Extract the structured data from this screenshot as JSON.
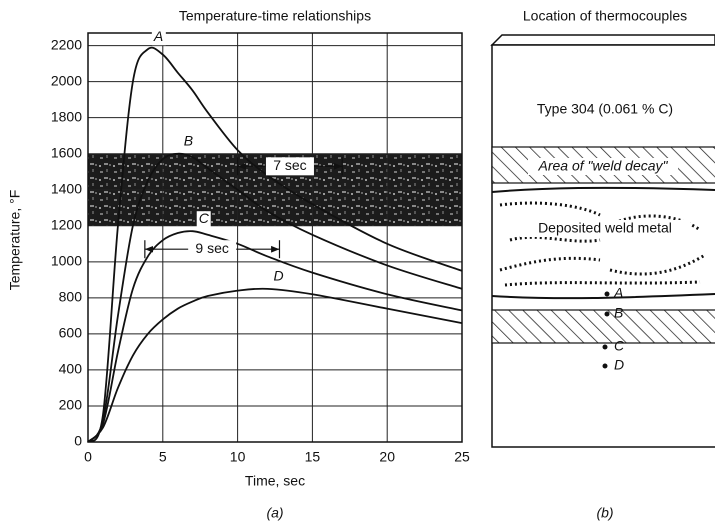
{
  "chart_data": {
    "type": "line",
    "title": "Temperature-time relationships",
    "x_label": "Time, sec",
    "y_label": "Temperature, °F",
    "panel_label": "(a)",
    "x": [
      0,
      1,
      2,
      3,
      4,
      5,
      6,
      7,
      8,
      10,
      12,
      15,
      20,
      25
    ],
    "series": [
      {
        "name": "A",
        "color": "#111111",
        "values": [
          0,
          150,
          1200,
          2000,
          2180,
          2150,
          2050,
          1950,
          1830,
          1620,
          1480,
          1320,
          1100,
          950
        ]
      },
      {
        "name": "B",
        "color": "#111111",
        "values": [
          0,
          120,
          700,
          1200,
          1450,
          1570,
          1600,
          1580,
          1520,
          1400,
          1280,
          1150,
          980,
          850
        ]
      },
      {
        "name": "C",
        "color": "#111111",
        "values": [
          0,
          100,
          500,
          850,
          1030,
          1120,
          1160,
          1170,
          1150,
          1100,
          1030,
          940,
          820,
          730
        ]
      },
      {
        "name": "D",
        "color": "#111111",
        "values": [
          0,
          80,
          300,
          480,
          600,
          680,
          740,
          780,
          810,
          840,
          850,
          820,
          740,
          660
        ]
      }
    ],
    "band": [
      1200,
      1600
    ],
    "annotations": [
      {
        "text": "7 sec",
        "x": [
          10,
          17
        ],
        "y": 1530
      },
      {
        "text": "9 sec",
        "x": [
          3.8,
          12.8
        ],
        "y": 1070
      }
    ],
    "xlim": [
      0,
      25
    ],
    "xticks": [
      0,
      5,
      10,
      15,
      20,
      25
    ],
    "ylim": [
      0,
      2270
    ],
    "yticks": [
      0,
      200,
      400,
      600,
      800,
      1000,
      1200,
      1400,
      1600,
      1800,
      2000,
      2200
    ],
    "grid": true
  },
  "diagram": {
    "title": "Location of thermocouples",
    "panel_label": "(b)",
    "layers": [
      "Type 304 (0.061 % C)",
      "Area of \"weld decay\"",
      "Deposited weld metal"
    ],
    "points": [
      "A",
      "B",
      "C",
      "D"
    ]
  }
}
